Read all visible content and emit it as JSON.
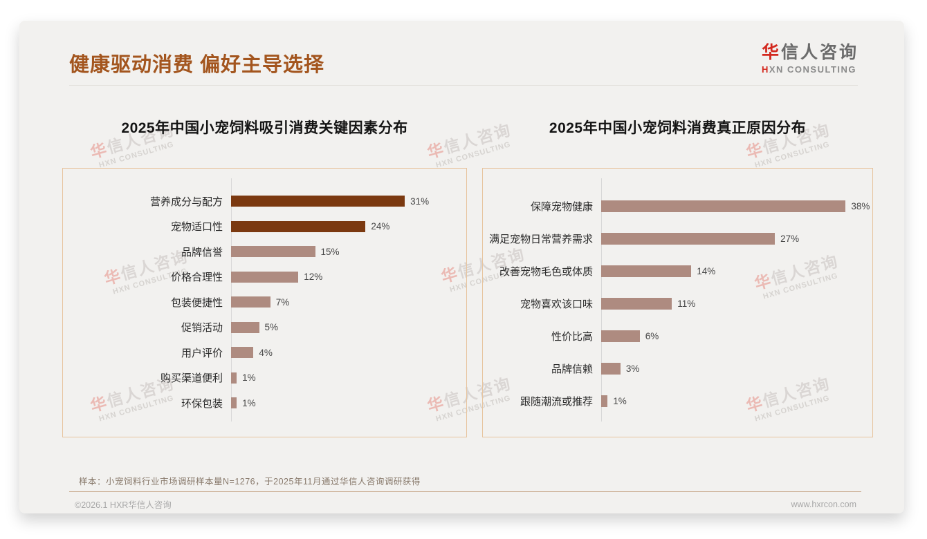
{
  "header": {
    "title": "健康驱动消费 偏好主导选择"
  },
  "logo": {
    "name_accent": "华",
    "name_rest": "信人咨询",
    "tagline_accent": "H",
    "tagline_rest": "XN CONSULTING"
  },
  "watermark": {
    "line1_accent": "华",
    "line1_rest": "信人咨询",
    "line2": "HXN CONSULTING"
  },
  "chart_data": [
    {
      "type": "bar",
      "orientation": "horizontal",
      "title": "2025年中国小宠饲料吸引消费关键因素分布",
      "categories": [
        "营养成分与配方",
        "宠物适口性",
        "品牌信誉",
        "价格合理性",
        "包装便捷性",
        "促销活动",
        "用户评价",
        "购买渠道便利",
        "环保包装"
      ],
      "values": [
        31,
        24,
        15,
        12,
        7,
        5,
        4,
        1,
        1
      ],
      "unit": "%",
      "xlim": [
        0,
        35
      ],
      "grid": false,
      "value_labels_shown": true,
      "bar_colors": [
        "#7B3910",
        "#7B3910",
        "#AE8B80",
        "#AE8B80",
        "#AE8B80",
        "#AE8B80",
        "#AE8B80",
        "#AE8B80",
        "#AE8B80"
      ]
    },
    {
      "type": "bar",
      "orientation": "horizontal",
      "title": "2025年中国小宠饲料消费真正原因分布",
      "categories": [
        "保障宠物健康",
        "满足宠物日常营养需求",
        "改善宠物毛色或体质",
        "宠物喜欢该口味",
        "性价比高",
        "品牌信赖",
        "跟随潮流或推荐"
      ],
      "values": [
        38,
        27,
        14,
        11,
        6,
        3,
        1
      ],
      "unit": "%",
      "xlim": [
        0,
        42
      ],
      "grid": false,
      "value_labels_shown": true,
      "bar_colors": [
        "#AE8B80",
        "#AE8B80",
        "#AE8B80",
        "#AE8B80",
        "#AE8B80",
        "#AE8B80",
        "#AE8B80"
      ]
    }
  ],
  "footnote": {
    "sample_note": "样本：小宠饲料行业市场调研样本量N=1276，于2025年11月通过华信人咨询调研获得"
  },
  "footer": {
    "copyright": "©2026.1 HXR华信人咨询",
    "website": "www.hxrcon.com"
  },
  "colors": {
    "title_brown": "#A3551E",
    "dark_bar": "#7B3910",
    "light_bar": "#AE8B80",
    "logo_red": "#D3281E",
    "panel_border": "#E7C49E"
  }
}
